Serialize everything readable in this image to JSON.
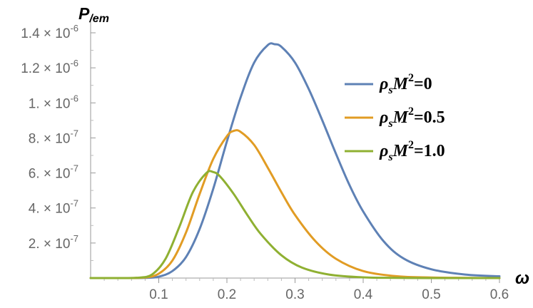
{
  "chart_data": {
    "type": "line",
    "ylabel": "P",
    "ylabel_sub": "/em",
    "xlabel": "ω",
    "xlim": [
      0,
      0.6
    ],
    "ylim": [
      0,
      1.45e-06
    ],
    "x_ticks": [
      {
        "value": 0.1,
        "label": "0.1"
      },
      {
        "value": 0.2,
        "label": "0.2"
      },
      {
        "value": 0.3,
        "label": "0.3"
      },
      {
        "value": 0.4,
        "label": "0.4"
      },
      {
        "value": 0.5,
        "label": "0.5"
      },
      {
        "value": 0.6,
        "label": "0.6"
      }
    ],
    "y_ticks": [
      {
        "value": 2e-07,
        "mantissa": "2.",
        "exponent": "-7"
      },
      {
        "value": 4e-07,
        "mantissa": "4.",
        "exponent": "-7"
      },
      {
        "value": 6e-07,
        "mantissa": "6.",
        "exponent": "-7"
      },
      {
        "value": 8e-07,
        "mantissa": "8.",
        "exponent": "-7"
      },
      {
        "value": 1e-06,
        "mantissa": "1.",
        "exponent": "-6"
      },
      {
        "value": 1.2e-06,
        "mantissa": "1.2",
        "exponent": "-6"
      },
      {
        "value": 1.4e-06,
        "mantissa": "1.4",
        "exponent": "-6"
      }
    ],
    "grid": false,
    "legend_position": "right",
    "series": [
      {
        "name": "ρsM2=0",
        "label_main": "ρ",
        "label_sub": "s",
        "label_mid": "M",
        "label_sup": "2",
        "label_end": "=0",
        "color": "#5e81b5",
        "x": [
          0,
          0.05,
          0.08,
          0.1,
          0.12,
          0.14,
          0.16,
          0.18,
          0.2,
          0.22,
          0.24,
          0.26,
          0.27,
          0.28,
          0.3,
          0.32,
          0.34,
          0.36,
          0.38,
          0.4,
          0.43,
          0.46,
          0.5,
          0.55,
          0.6
        ],
        "y": [
          0,
          0,
          1e-09,
          8e-09,
          4e-08,
          1.2e-07,
          2.8e-07,
          5.1e-07,
          7.8e-07,
          1.03e-06,
          1.23e-06,
          1.33e-06,
          1.335e-06,
          1.32e-06,
          1.23e-06,
          1.08e-06,
          9e-07,
          7.1e-07,
          5.3e-07,
          3.8e-07,
          2.1e-07,
          1.1e-07,
          5e-08,
          2e-08,
          1e-08
        ]
      },
      {
        "name": "ρsM2=0.5",
        "label_main": "ρ",
        "label_sub": "s",
        "label_mid": "M",
        "label_sup": "2",
        "label_end": "=0.5",
        "color": "#e19c24",
        "x": [
          0,
          0.05,
          0.08,
          0.1,
          0.12,
          0.14,
          0.16,
          0.18,
          0.2,
          0.21,
          0.22,
          0.24,
          0.26,
          0.28,
          0.3,
          0.33,
          0.36,
          0.4,
          0.45,
          0.5,
          0.55,
          0.6
        ],
        "y": [
          0,
          0,
          3e-09,
          2.5e-08,
          1e-07,
          2.6e-07,
          4.8e-07,
          6.8e-07,
          8.1e-07,
          8.4e-07,
          8.35e-07,
          7.6e-07,
          6.3e-07,
          4.9e-07,
          3.6e-07,
          2.1e-07,
          1.1e-07,
          4e-08,
          1e-08,
          3e-09,
          1e-09,
          0
        ]
      },
      {
        "name": "ρsM2=1.0",
        "label_main": "ρ",
        "label_sub": "s",
        "label_mid": "M",
        "label_sup": "2",
        "label_end": "=1.0",
        "color": "#8fb032",
        "x": [
          0,
          0.05,
          0.07,
          0.09,
          0.11,
          0.13,
          0.15,
          0.17,
          0.18,
          0.19,
          0.21,
          0.23,
          0.25,
          0.28,
          0.31,
          0.35,
          0.4,
          0.45,
          0.5,
          0.6
        ],
        "y": [
          0,
          0,
          2e-09,
          2e-08,
          1.1e-07,
          2.9e-07,
          4.9e-07,
          6e-07,
          6.05e-07,
          5.8e-07,
          4.8e-07,
          3.6e-07,
          2.5e-07,
          1.3e-07,
          6e-08,
          2e-08,
          4e-09,
          1e-09,
          0,
          0
        ]
      }
    ]
  }
}
